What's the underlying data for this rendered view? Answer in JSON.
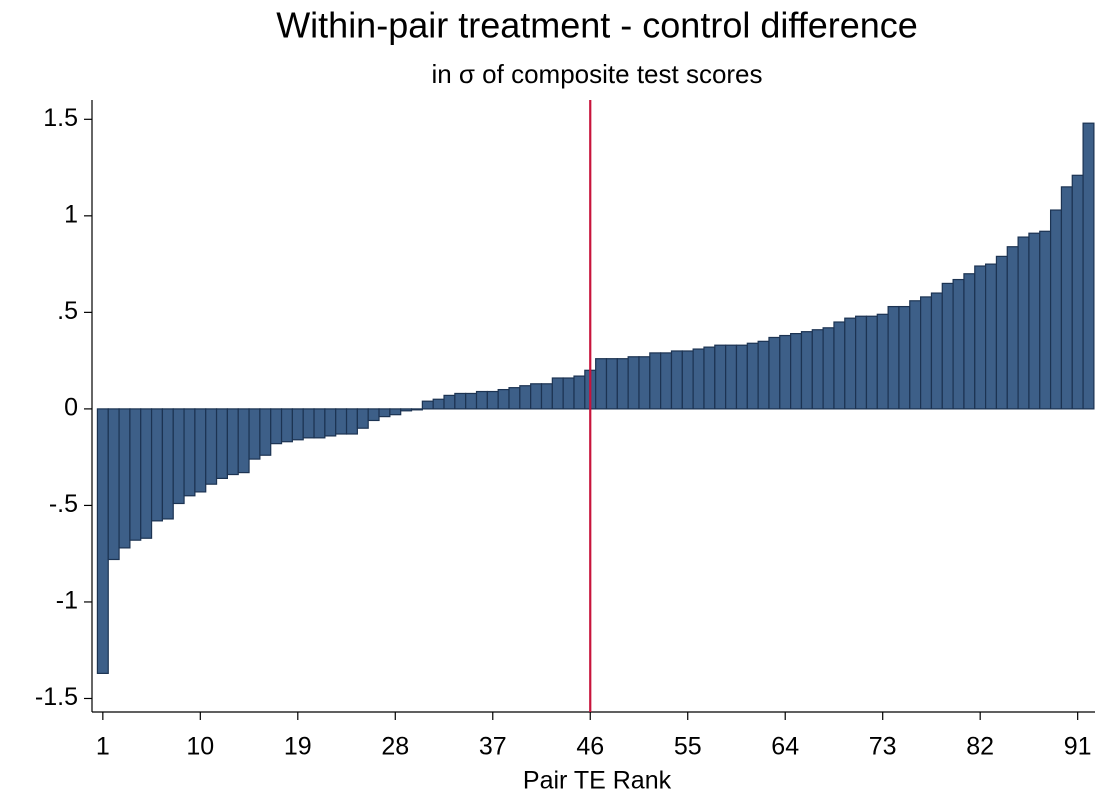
{
  "chart_data": {
    "type": "bar",
    "title": "Within-pair treatment - control difference",
    "subtitle": "in σ of composite test scores",
    "x_label": "Pair TE Rank",
    "color": "#3d5f88",
    "edge_color": "#1c3352",
    "reference_line_x": 46,
    "reference_line_color": "#c8143c",
    "x": [
      1,
      2,
      3,
      4,
      5,
      6,
      7,
      8,
      9,
      10,
      11,
      12,
      13,
      14,
      15,
      16,
      17,
      18,
      19,
      20,
      21,
      22,
      23,
      24,
      25,
      26,
      27,
      28,
      29,
      30,
      31,
      32,
      33,
      34,
      35,
      36,
      37,
      38,
      39,
      40,
      41,
      42,
      43,
      44,
      45,
      46,
      47,
      48,
      49,
      50,
      51,
      52,
      53,
      54,
      55,
      56,
      57,
      58,
      59,
      60,
      61,
      62,
      63,
      64,
      65,
      66,
      67,
      68,
      69,
      70,
      71,
      72,
      73,
      74,
      75,
      76,
      77,
      78,
      79,
      80,
      81,
      82,
      83,
      84,
      85,
      86,
      87,
      88,
      89,
      90,
      91,
      92
    ],
    "values": [
      -1.37,
      -0.78,
      -0.72,
      -0.68,
      -0.67,
      -0.58,
      -0.57,
      -0.49,
      -0.45,
      -0.43,
      -0.39,
      -0.36,
      -0.34,
      -0.33,
      -0.26,
      -0.24,
      -0.18,
      -0.17,
      -0.16,
      -0.15,
      -0.15,
      -0.14,
      -0.13,
      -0.13,
      -0.1,
      -0.06,
      -0.04,
      -0.03,
      -0.01,
      -0.005,
      0.04,
      0.05,
      0.07,
      0.08,
      0.08,
      0.09,
      0.09,
      0.1,
      0.11,
      0.12,
      0.13,
      0.13,
      0.16,
      0.16,
      0.17,
      0.2,
      0.26,
      0.26,
      0.26,
      0.27,
      0.27,
      0.29,
      0.29,
      0.3,
      0.3,
      0.31,
      0.32,
      0.33,
      0.33,
      0.33,
      0.34,
      0.35,
      0.37,
      0.38,
      0.39,
      0.4,
      0.41,
      0.42,
      0.45,
      0.47,
      0.48,
      0.48,
      0.49,
      0.53,
      0.53,
      0.56,
      0.58,
      0.6,
      0.65,
      0.67,
      0.7,
      0.74,
      0.75,
      0.79,
      0.84,
      0.89,
      0.91,
      0.92,
      1.03,
      1.15,
      1.21,
      1.48
    ],
    "xlim": [
      0,
      92.6
    ],
    "ylim": [
      -1.57,
      1.6
    ],
    "xticks": [
      1,
      10,
      19,
      28,
      37,
      46,
      55,
      64,
      73,
      82,
      91
    ],
    "yticks": [
      1.5,
      1,
      {
        "value": 0.5,
        "label": ".5"
      },
      0,
      {
        "value": -0.5,
        "label": "-.5"
      },
      -1,
      -1.5
    ],
    "grid": false
  }
}
